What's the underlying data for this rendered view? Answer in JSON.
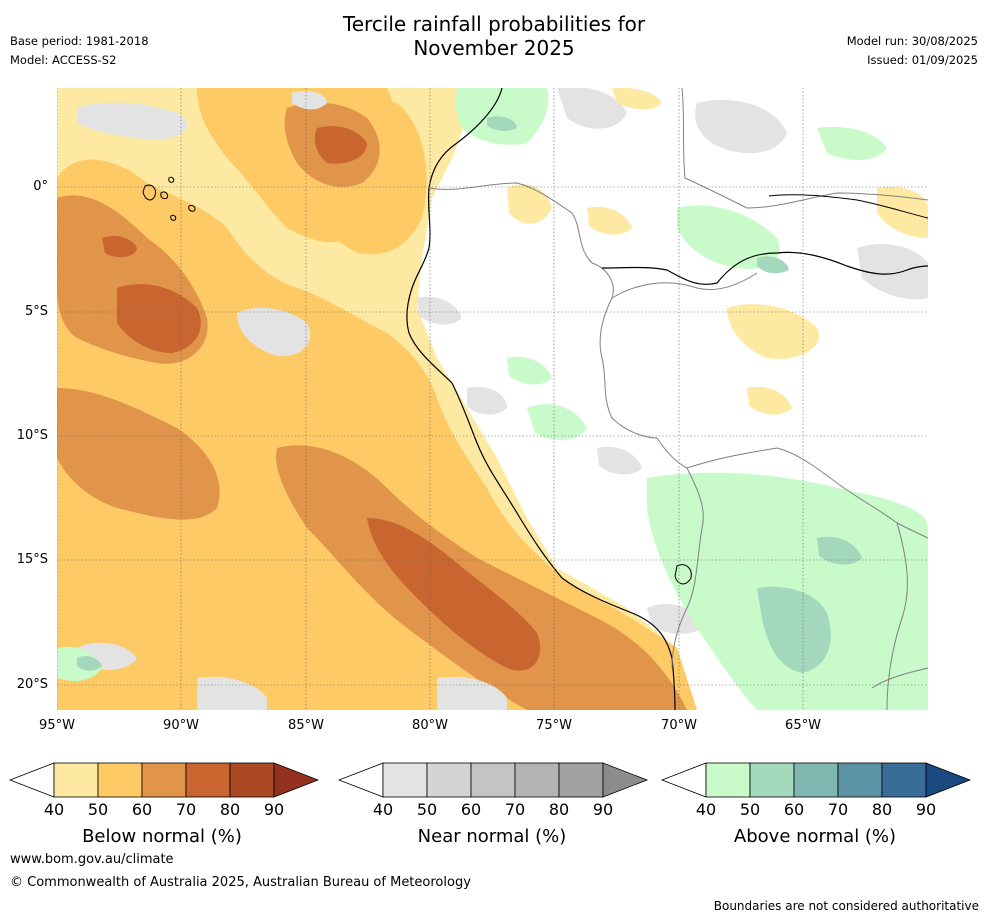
{
  "header": {
    "title_line1": "Tercile rainfall probabilities for",
    "title_line2": "November 2025",
    "base_period": "Base period: 1981-2018",
    "model": "Model: ACCESS-S2",
    "model_run": "Model run: 30/08/2025",
    "issued": "Issued: 01/09/2025"
  },
  "map": {
    "lat_labels": [
      "0°",
      "5°S",
      "10°S",
      "15°S",
      "20°S"
    ],
    "lon_labels": [
      "95°W",
      "90°W",
      "85°W",
      "80°W",
      "75°W",
      "70°W",
      "65°W"
    ],
    "colors": {
      "ocean_none": "#ffffff",
      "below_40": "#fee9a3",
      "below_50": "#fdca65",
      "below_60": "#e0954a",
      "below_70": "#c9652f",
      "near_40": "#e3e3e3",
      "above_40": "#c9fbca",
      "above_50": "#a4d8bc",
      "coast": "#000000",
      "border": "#808080"
    }
  },
  "colorbars": [
    {
      "id": "below",
      "title": "Below normal (%)",
      "ticks": [
        "40",
        "50",
        "60",
        "70",
        "80",
        "90"
      ],
      "colors": [
        "#fee9a3",
        "#fdca65",
        "#e0954a",
        "#c9652f",
        "#ab4925",
        "#94321f"
      ]
    },
    {
      "id": "near",
      "title": "Near normal (%)",
      "ticks": [
        "40",
        "50",
        "60",
        "70",
        "80",
        "90"
      ],
      "colors": [
        "#e3e3e3",
        "#d4d4d4",
        "#c4c4c4",
        "#b3b3b3",
        "#a1a1a1",
        "#8c8c8c"
      ]
    },
    {
      "id": "above",
      "title": "Above normal (%)",
      "ticks": [
        "40",
        "50",
        "60",
        "70",
        "80",
        "90"
      ],
      "colors": [
        "#c9fbca",
        "#a4d8bc",
        "#7fb6b0",
        "#5c93a4",
        "#376d96",
        "#194a80"
      ]
    }
  ],
  "footer": {
    "website": "www.bom.gov.au/climate",
    "copyright": "© Commonwealth of Australia 2025, Australian Bureau of Meteorology",
    "disclaimer": "Boundaries are not considered authoritative"
  }
}
